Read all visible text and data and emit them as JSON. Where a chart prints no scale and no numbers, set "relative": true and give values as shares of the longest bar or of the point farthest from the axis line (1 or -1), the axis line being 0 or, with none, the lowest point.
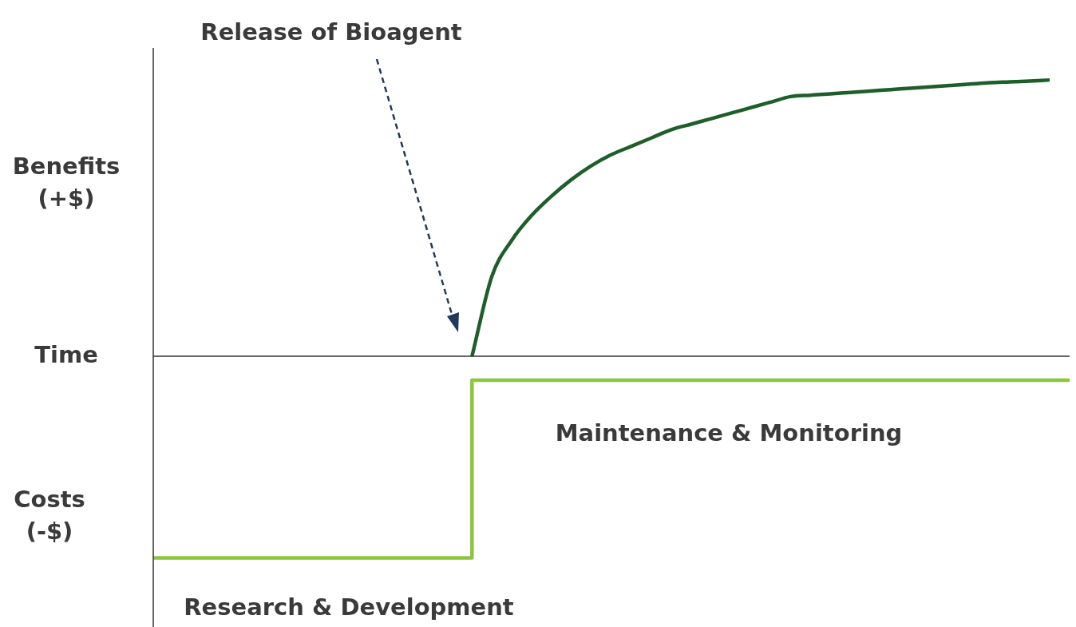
{
  "chart_data": {
    "type": "line",
    "relative": true,
    "xlabel": "Time",
    "categories": [
      null,
      null,
      null,
      null,
      null,
      null,
      null,
      null,
      null,
      null,
      null,
      null,
      null,
      null,
      null,
      null,
      null,
      null,
      null,
      null,
      null,
      null,
      null,
      null,
      null,
      null,
      null,
      null,
      null,
      null,
      null,
      null,
      null,
      null,
      null,
      null,
      null,
      null,
      null,
      null,
      null,
      null,
      null,
      null,
      null,
      null,
      null
    ],
    "series": [
      {
        "type": "line",
        "color": "#1e5e2a",
        "values": [
          null,
          null,
          null,
          null,
          null,
          null,
          null,
          null,
          null,
          null,
          null,
          null,
          null,
          null,
          null,
          null,
          0,
          0.29,
          0.42,
          0.51,
          0.58,
          0.64,
          0.69,
          0.73,
          0.76,
          0.79,
          0.82,
          0.84,
          0.86,
          0.88,
          0.9,
          0.92,
          0.94,
          0.945,
          0.95,
          0.955,
          0.96,
          0.965,
          0.97,
          0.975,
          0.98,
          0.985,
          0.99,
          0.993,
          0.996,
          1,
          null
        ]
      },
      {
        "type": "step",
        "color": "#8cc63f",
        "values": [
          -0.73,
          -0.73,
          -0.73,
          -0.73,
          -0.73,
          -0.73,
          -0.73,
          -0.73,
          -0.73,
          -0.73,
          -0.73,
          -0.73,
          -0.73,
          -0.73,
          -0.73,
          -0.73,
          -0.087,
          -0.087,
          -0.087,
          -0.087,
          -0.087,
          -0.087,
          -0.087,
          -0.087,
          -0.087,
          -0.087,
          -0.087,
          -0.087,
          -0.087,
          -0.087,
          -0.087,
          -0.087,
          -0.087,
          -0.087,
          -0.087,
          -0.087,
          -0.087,
          -0.087,
          -0.087,
          -0.087,
          -0.087,
          -0.087,
          -0.087,
          -0.087,
          -0.087,
          -0.087,
          -0.087
        ]
      }
    ],
    "annotations": [
      "Benefits (+$)",
      "Costs (-$)",
      "Release of Bioagent",
      "Maintenance & Monitoring",
      "Research & Development"
    ]
  }
}
